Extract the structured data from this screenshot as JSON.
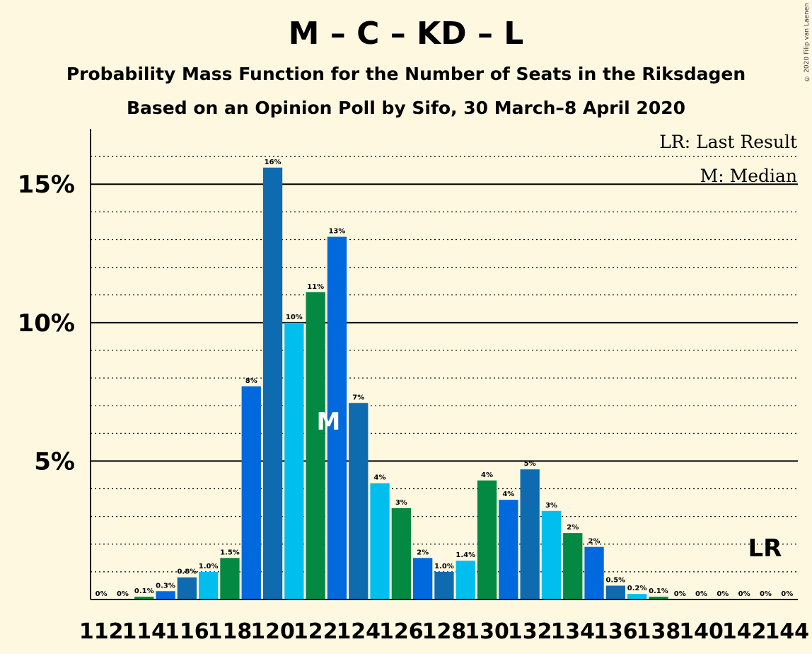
{
  "title": "M – C – KD – L",
  "subtitle": "Probability Mass Function for the Number of Seats in the Riksdagen",
  "subtitle2": "Based on an Opinion Poll by Sifo, 30 March–8 April 2020",
  "copyright": "© 2020 Filip van Laenen",
  "legend": {
    "lr": "LR: Last Result",
    "m": "M: Median"
  },
  "markers": {
    "median_text": "M",
    "median_seat": 123,
    "lr_text": "LR",
    "lr_seat": 143
  },
  "colors": {
    "background": "#fff8e1",
    "palette": [
      "#0e6bb0",
      "#00bfef",
      "#048942",
      "#0069dd"
    ]
  },
  "chart_data": {
    "type": "bar",
    "x": [
      112,
      113,
      114,
      115,
      116,
      117,
      118,
      119,
      120,
      121,
      122,
      123,
      124,
      125,
      126,
      127,
      128,
      129,
      130,
      131,
      132,
      133,
      134,
      135,
      136,
      137,
      138,
      139,
      140,
      141,
      142,
      143,
      144
    ],
    "values": [
      0,
      0,
      0.1,
      0.3,
      0.8,
      1.0,
      1.5,
      7.7,
      15.6,
      10.0,
      11.1,
      13.1,
      7.1,
      4.2,
      3.3,
      1.5,
      1.0,
      1.4,
      4.3,
      3.6,
      4.7,
      3.2,
      2.4,
      1.9,
      0.5,
      0.2,
      0.1,
      0,
      0,
      0,
      0,
      0,
      0
    ],
    "labels": [
      "0%",
      "0%",
      "0.1%",
      "0.3%",
      "0.8%",
      "1.0%",
      "1.5%",
      "8%",
      "16%",
      "10%",
      "11%",
      "13%",
      "7%",
      "4%",
      "3%",
      "2%",
      "1.0%",
      "1.4%",
      "4%",
      "4%",
      "5%",
      "3%",
      "2%",
      "2%",
      "0.5%",
      "0.2%",
      "0.1%",
      "0%",
      "0%",
      "0%",
      "0%",
      "0%",
      "0%"
    ],
    "xticks": [
      "112",
      "114",
      "116",
      "118",
      "120",
      "122",
      "124",
      "126",
      "128",
      "130",
      "132",
      "134",
      "136",
      "138",
      "140",
      "142",
      "144"
    ],
    "yticks": [
      {
        "value": 5,
        "label": "5%"
      },
      {
        "value": 10,
        "label": "10%"
      },
      {
        "value": 15,
        "label": "15%"
      }
    ],
    "ylim": [
      0,
      17
    ],
    "grid": true,
    "legend_position": "top-right"
  }
}
